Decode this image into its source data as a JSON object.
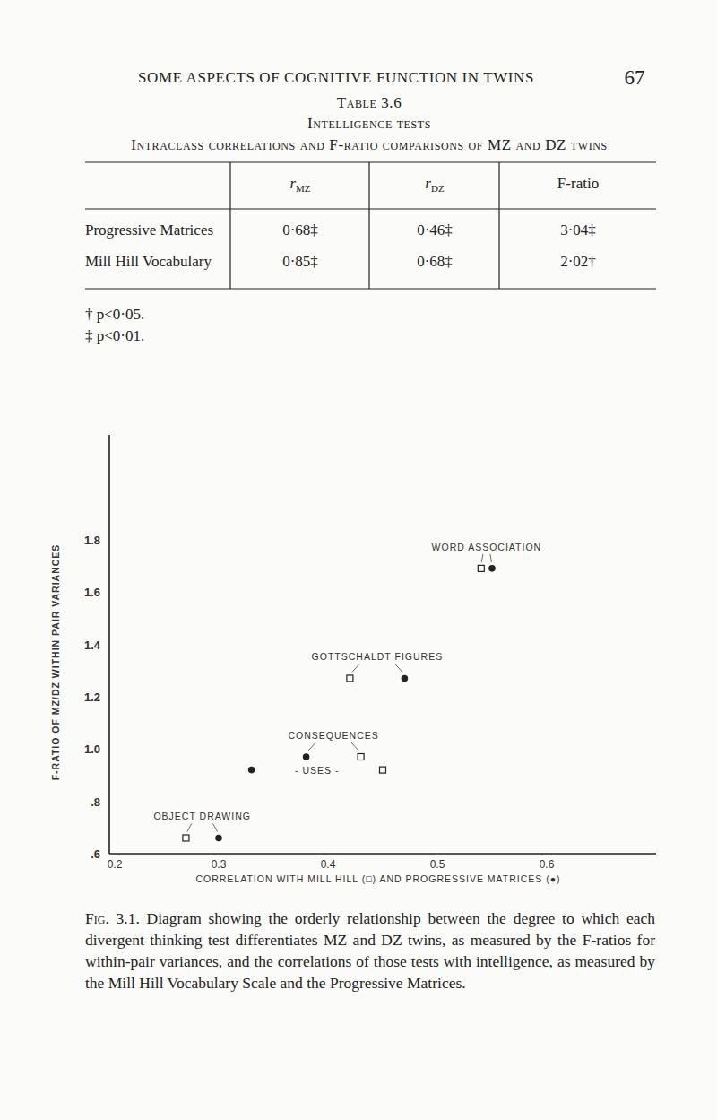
{
  "page": {
    "header": "SOME ASPECTS OF COGNITIVE FUNCTION IN TWINS",
    "number": "67"
  },
  "table": {
    "label": "Table 3.6",
    "title": "Intelligence tests",
    "subtitle": "Intraclass correlations and F-ratio comparisons of MZ and DZ twins",
    "columns": [
      {
        "main": "r",
        "sub": "MZ"
      },
      {
        "main": "r",
        "sub": "DZ"
      },
      "F-ratio"
    ],
    "rows": [
      [
        "Progressive Matrices",
        "0·68‡",
        "0·46‡",
        "3·04‡"
      ],
      [
        "Mill Hill Vocabulary",
        "0·85‡",
        "0·68‡",
        "2·02†"
      ]
    ],
    "footnotes": [
      "† p<0·05.",
      "‡ p<0·01."
    ]
  },
  "chart_data": {
    "type": "scatter",
    "x_label": "CORRELATION WITH MILL HILL (□) AND PROGRESSIVE MATRICES (●)",
    "y_label": "F-RATIO OF MZ/DZ WITHIN PAIR VARIANCES",
    "xlim": [
      0.2,
      0.7
    ],
    "xticks": [
      0.2,
      0.3,
      0.4,
      0.5,
      0.6
    ],
    "ylim": [
      0.6,
      2.2
    ],
    "yticks": [
      {
        "value": 0.6,
        "label": ".6"
      },
      {
        "value": 0.8,
        "label": ".8"
      },
      {
        "value": 1.0,
        "label": "1.0"
      },
      1.2,
      1.4,
      1.6,
      1.8
    ],
    "grid": false,
    "annotations": [
      "WORD ASSOCIATION",
      "GOTTSCHALDT FIGURES",
      "CONSEQUENCES",
      "- USES -",
      "OBJECT DRAWING"
    ],
    "series": [
      {
        "marker": "square",
        "color": "#222222",
        "x": [
          0.54,
          0.42,
          0.43,
          0.45,
          0.27
        ],
        "values": [
          1.69,
          1.27,
          0.97,
          0.92,
          0.66
        ]
      },
      {
        "marker": "circle",
        "color": "#222222",
        "x": [
          0.55,
          0.47,
          0.38,
          0.33,
          0.3
        ],
        "values": [
          1.69,
          1.27,
          0.97,
          0.92,
          0.66
        ]
      }
    ]
  },
  "caption": {
    "label": "Fig. 3.1.",
    "text": "Diagram showing the orderly relationship between the degree to which each divergent thinking test differentiates MZ and DZ twins, as measured by the F-ratios for within-pair variances, and the correlations of those tests with intelligence, as measured by the Mill Hill Vocabulary Scale and the Progressive Matrices."
  }
}
